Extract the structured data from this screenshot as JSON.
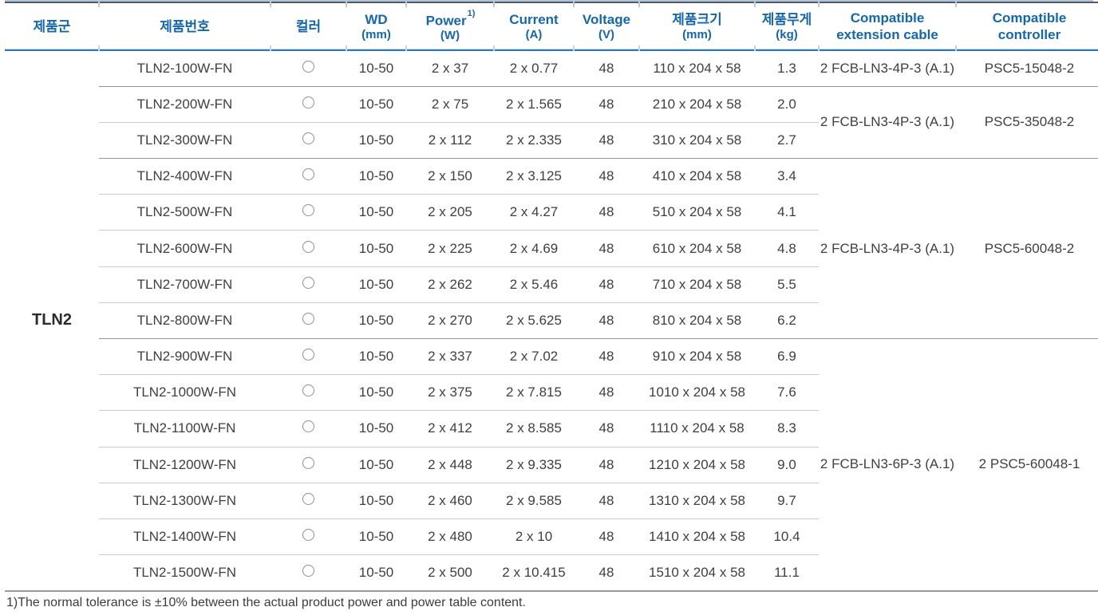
{
  "colors": {
    "header_text": "#1467ae",
    "header_rule": "#2e76b7",
    "top_rule_dark": "#56585e",
    "top_rule_light": "#aec5de",
    "row_divider": "#cbcbcb",
    "group_divider": "#949494",
    "bottom_rule": "#9a9a9a"
  },
  "table": {
    "columns": [
      {
        "label": "제품군",
        "sub": ""
      },
      {
        "label": "제품번호",
        "sub": ""
      },
      {
        "label": "컬러",
        "sub": ""
      },
      {
        "label": "WD",
        "sub": "(mm)"
      },
      {
        "label": "Power",
        "sup": "1)",
        "sub": "(W)"
      },
      {
        "label": "Current",
        "sub": "(A)"
      },
      {
        "label": "Voltage",
        "sub": "(V)"
      },
      {
        "label": "제품크기",
        "sub": "(mm)"
      },
      {
        "label": "제품무게",
        "sub": "(kg)"
      },
      {
        "label": "Compatible extension cable",
        "sub": ""
      },
      {
        "label": "Compatible controller",
        "sub": ""
      }
    ],
    "family": "TLN2",
    "color_icon": "circle-outline-icon",
    "rows": [
      {
        "part": "TLN2-100W-FN",
        "wd": "10-50",
        "power": "2 x 37",
        "current": "2 x 0.77",
        "voltage": "48",
        "size": "110 x 204 x 58",
        "weight": "1.3"
      },
      {
        "part": "TLN2-200W-FN",
        "wd": "10-50",
        "power": "2 x 75",
        "current": "2 x 1.565",
        "voltage": "48",
        "size": "210 x 204 x 58",
        "weight": "2.0"
      },
      {
        "part": "TLN2-300W-FN",
        "wd": "10-50",
        "power": "2 x 112",
        "current": "2 x 2.335",
        "voltage": "48",
        "size": "310 x 204 x 58",
        "weight": "2.7"
      },
      {
        "part": "TLN2-400W-FN",
        "wd": "10-50",
        "power": "2 x 150",
        "current": "2 x 3.125",
        "voltage": "48",
        "size": "410 x 204 x 58",
        "weight": "3.4"
      },
      {
        "part": "TLN2-500W-FN",
        "wd": "10-50",
        "power": "2 x 205",
        "current": "2 x 4.27",
        "voltage": "48",
        "size": "510 x 204 x 58",
        "weight": "4.1"
      },
      {
        "part": "TLN2-600W-FN",
        "wd": "10-50",
        "power": "2 x 225",
        "current": "2 x 4.69",
        "voltage": "48",
        "size": "610 x 204 x 58",
        "weight": "4.8"
      },
      {
        "part": "TLN2-700W-FN",
        "wd": "10-50",
        "power": "2 x 262",
        "current": "2 x 5.46",
        "voltage": "48",
        "size": "710 x 204 x 58",
        "weight": "5.5"
      },
      {
        "part": "TLN2-800W-FN",
        "wd": "10-50",
        "power": "2 x 270",
        "current": "2 x 5.625",
        "voltage": "48",
        "size": "810 x 204 x 58",
        "weight": "6.2"
      },
      {
        "part": "TLN2-900W-FN",
        "wd": "10-50",
        "power": "2 x 337",
        "current": "2 x 7.02",
        "voltage": "48",
        "size": "910 x 204 x 58",
        "weight": "6.9"
      },
      {
        "part": "TLN2-1000W-FN",
        "wd": "10-50",
        "power": "2 x 375",
        "current": "2 x 7.815",
        "voltage": "48",
        "size": "1010 x 204 x 58",
        "weight": "7.6"
      },
      {
        "part": "TLN2-1100W-FN",
        "wd": "10-50",
        "power": "2 x 412",
        "current": "2 x 8.585",
        "voltage": "48",
        "size": "1110 x 204 x 58",
        "weight": "8.3"
      },
      {
        "part": "TLN2-1200W-FN",
        "wd": "10-50",
        "power": "2 x 448",
        "current": "2 x 9.335",
        "voltage": "48",
        "size": "1210 x 204 x 58",
        "weight": "9.0"
      },
      {
        "part": "TLN2-1300W-FN",
        "wd": "10-50",
        "power": "2 x 460",
        "current": "2 x 9.585",
        "voltage": "48",
        "size": "1310 x 204 x 58",
        "weight": "9.7"
      },
      {
        "part": "TLN2-1400W-FN",
        "wd": "10-50",
        "power": "2 x 480",
        "current": "2 x 10",
        "voltage": "48",
        "size": "1410 x 204 x 58",
        "weight": "10.4"
      },
      {
        "part": "TLN2-1500W-FN",
        "wd": "10-50",
        "power": "2 x 500",
        "current": "2 x 10.415",
        "voltage": "48",
        "size": "1510 x 204 x 58",
        "weight": "11.1"
      }
    ],
    "groups": [
      {
        "start": 0,
        "span": 1,
        "cable": "2 FCB-LN3-4P-3 (A.1)",
        "controller": "PSC5-15048-2"
      },
      {
        "start": 1,
        "span": 2,
        "cable": "2 FCB-LN3-4P-3 (A.1)",
        "controller": "PSC5-35048-2"
      },
      {
        "start": 3,
        "span": 5,
        "cable": "2 FCB-LN3-4P-3 (A.1)",
        "controller": "PSC5-60048-2"
      },
      {
        "start": 8,
        "span": 7,
        "cable": "2 FCB-LN3-6P-3 (A.1)",
        "controller": "2 PSC5-60048-1"
      }
    ]
  },
  "footnote": "1)The normal tolerance is ±10% between the actual product power and power table content."
}
